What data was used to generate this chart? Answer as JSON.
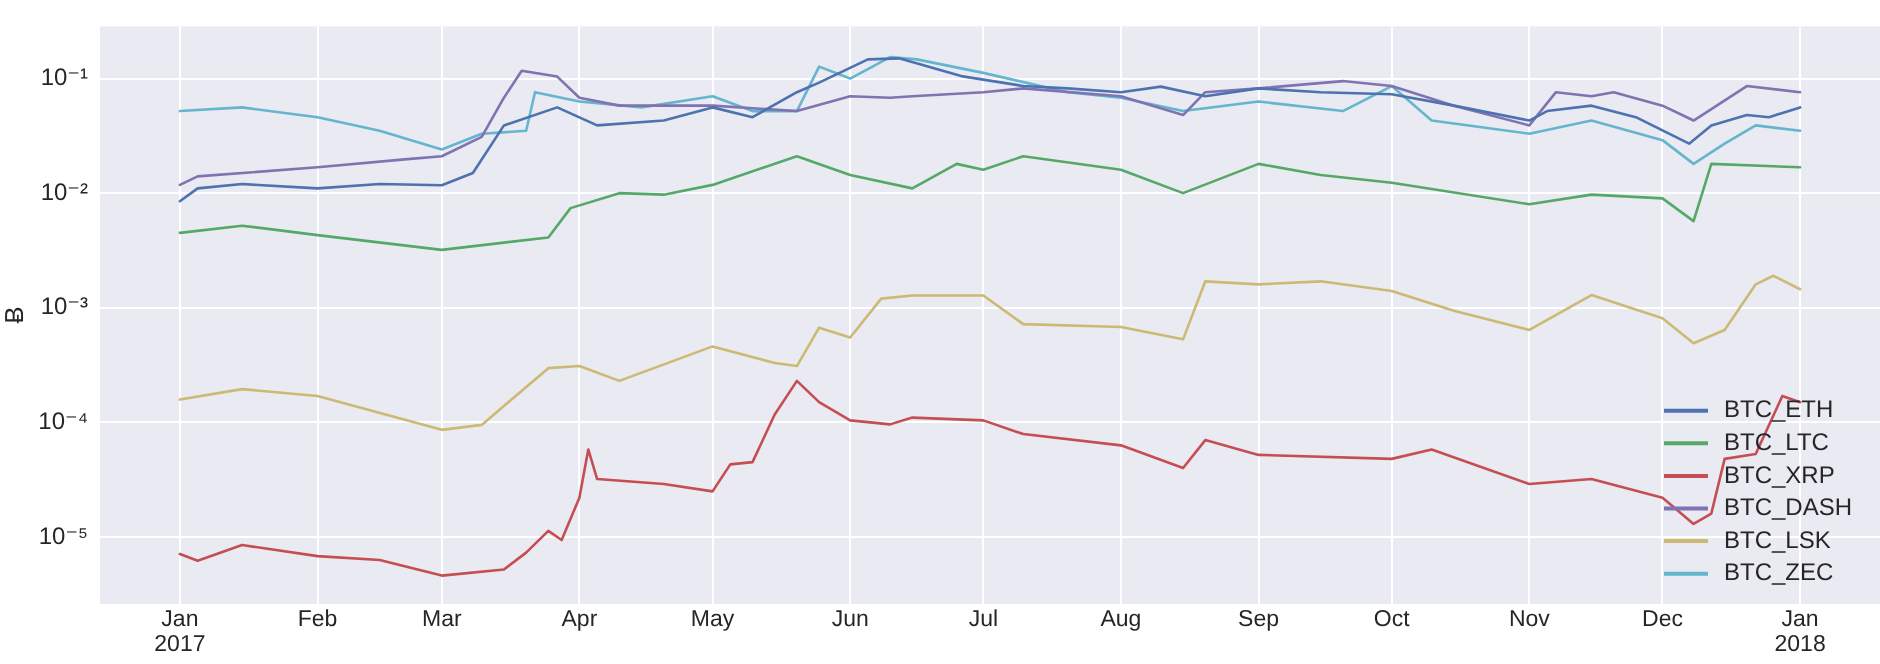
{
  "chart_data": {
    "type": "line",
    "ylabel": "Ƀ",
    "log": "y",
    "grid": true,
    "legend": "bottom right",
    "marker": "none",
    "line_style": "solid",
    "xlim": [
      "2016-12-14",
      "2018-01-19"
    ],
    "xticks": [
      {
        "value": "2017-01-01",
        "label": "Jan\n2017"
      },
      {
        "value": "2017-02-01",
        "label": "Feb"
      },
      {
        "value": "2017-03-01",
        "label": "Mar"
      },
      {
        "value": "2017-04-01",
        "label": "Apr"
      },
      {
        "value": "2017-05-01",
        "label": "May"
      },
      {
        "value": "2017-06-01",
        "label": "Jun"
      },
      {
        "value": "2017-07-01",
        "label": "Jul"
      },
      {
        "value": "2017-08-01",
        "label": "Aug"
      },
      {
        "value": "2017-09-01",
        "label": "Sep"
      },
      {
        "value": "2017-10-01",
        "label": "Oct"
      },
      {
        "value": "2017-11-01",
        "label": "Nov"
      },
      {
        "value": "2017-12-01",
        "label": "Dec"
      },
      {
        "value": "2018-01-01",
        "label": "Jan\n2018"
      }
    ],
    "ylim": [
      2.6e-06,
      0.285
    ],
    "yticks": [
      {
        "value": 1e-05,
        "label": "10⁻⁵"
      },
      {
        "value": 0.0001,
        "label": "10⁻⁴"
      },
      {
        "value": 0.001,
        "label": "10⁻³"
      },
      {
        "value": 0.01,
        "label": "10⁻²"
      },
      {
        "value": 0.1,
        "label": "10⁻¹"
      }
    ],
    "series": [
      {
        "name": "BTC_ETH",
        "color": "#4c72b0",
        "x": [
          "2017-01-01",
          "2017-01-05",
          "2017-01-15",
          "2017-02-01",
          "2017-02-15",
          "2017-03-01",
          "2017-03-08",
          "2017-03-15",
          "2017-03-27",
          "2017-04-05",
          "2017-04-20",
          "2017-05-01",
          "2017-05-10",
          "2017-05-20",
          "2017-05-25",
          "2017-06-05",
          "2017-06-12",
          "2017-06-26",
          "2017-07-10",
          "2017-07-20",
          "2017-08-01",
          "2017-08-10",
          "2017-08-20",
          "2017-09-01",
          "2017-09-15",
          "2017-10-01",
          "2017-10-15",
          "2017-11-01",
          "2017-11-05",
          "2017-11-15",
          "2017-11-25",
          "2017-12-07",
          "2017-12-12",
          "2017-12-20",
          "2017-12-25",
          "2018-01-01"
        ],
        "values": [
          0.0085,
          0.011,
          0.012,
          0.011,
          0.012,
          0.0117,
          0.015,
          0.039,
          0.056,
          0.039,
          0.043,
          0.056,
          0.046,
          0.076,
          0.092,
          0.147,
          0.15,
          0.105,
          0.086,
          0.082,
          0.076,
          0.085,
          0.07,
          0.082,
          0.076,
          0.073,
          0.058,
          0.043,
          0.052,
          0.058,
          0.046,
          0.027,
          0.039,
          0.048,
          0.046,
          0.056
        ]
      },
      {
        "name": "BTC_LTC",
        "color": "#55a868",
        "x": [
          "2017-01-01",
          "2017-01-15",
          "2017-02-01",
          "2017-03-01",
          "2017-03-15",
          "2017-03-25",
          "2017-03-30",
          "2017-04-10",
          "2017-04-20",
          "2017-05-01",
          "2017-05-20",
          "2017-06-01",
          "2017-06-15",
          "2017-06-25",
          "2017-07-01",
          "2017-07-10",
          "2017-08-01",
          "2017-08-15",
          "2017-09-01",
          "2017-09-15",
          "2017-10-01",
          "2017-11-01",
          "2017-11-15",
          "2017-12-01",
          "2017-12-08",
          "2017-12-12",
          "2018-01-01"
        ],
        "values": [
          0.0045,
          0.0052,
          0.0043,
          0.0032,
          0.0037,
          0.0041,
          0.0074,
          0.01,
          0.0097,
          0.0118,
          0.021,
          0.0144,
          0.011,
          0.018,
          0.016,
          0.021,
          0.016,
          0.01,
          0.018,
          0.0144,
          0.0123,
          0.008,
          0.0097,
          0.009,
          0.0057,
          0.018,
          0.0168
        ]
      },
      {
        "name": "BTC_XRP",
        "color": "#c44e52",
        "x": [
          "2017-01-01",
          "2017-01-05",
          "2017-01-15",
          "2017-02-01",
          "2017-02-15",
          "2017-03-01",
          "2017-03-15",
          "2017-03-20",
          "2017-03-25",
          "2017-03-28",
          "2017-04-01",
          "2017-04-03",
          "2017-04-05",
          "2017-04-20",
          "2017-05-01",
          "2017-05-05",
          "2017-05-10",
          "2017-05-15",
          "2017-05-20",
          "2017-05-25",
          "2017-06-01",
          "2017-06-10",
          "2017-06-15",
          "2017-07-01",
          "2017-07-10",
          "2017-08-01",
          "2017-08-15",
          "2017-08-20",
          "2017-09-01",
          "2017-10-01",
          "2017-10-10",
          "2017-11-01",
          "2017-11-15",
          "2017-12-01",
          "2017-12-08",
          "2017-12-12",
          "2017-12-15",
          "2017-12-22",
          "2017-12-28",
          "2018-01-01"
        ],
        "values": [
          7.1e-06,
          6.2e-06,
          8.5e-06,
          6.8e-06,
          6.3e-06,
          4.6e-06,
          5.2e-06,
          7.3e-06,
          1.13e-05,
          9.4e-06,
          2.2e-05,
          5.8e-05,
          3.2e-05,
          2.9e-05,
          2.5e-05,
          4.3e-05,
          4.5e-05,
          0.000117,
          0.00023,
          0.00015,
          0.000104,
          9.6e-05,
          0.00011,
          0.000104,
          7.9e-05,
          6.3e-05,
          4e-05,
          7e-05,
          5.2e-05,
          4.8e-05,
          5.8e-05,
          2.9e-05,
          3.2e-05,
          2.2e-05,
          1.3e-05,
          1.6e-05,
          4.8e-05,
          5.3e-05,
          0.00017,
          0.00015
        ]
      },
      {
        "name": "BTC_DASH",
        "color": "#8172b2",
        "x": [
          "2017-01-01",
          "2017-01-05",
          "2017-02-01",
          "2017-02-20",
          "2017-03-01",
          "2017-03-10",
          "2017-03-15",
          "2017-03-19",
          "2017-03-27",
          "2017-04-01",
          "2017-04-10",
          "2017-05-01",
          "2017-05-20",
          "2017-06-01",
          "2017-06-10",
          "2017-06-15",
          "2017-07-01",
          "2017-07-10",
          "2017-08-01",
          "2017-08-15",
          "2017-08-20",
          "2017-09-01",
          "2017-09-20",
          "2017-10-01",
          "2017-10-15",
          "2017-11-01",
          "2017-11-07",
          "2017-11-15",
          "2017-11-20",
          "2017-12-01",
          "2017-12-08",
          "2017-12-20",
          "2018-01-01"
        ],
        "values": [
          0.0118,
          0.014,
          0.0168,
          0.0196,
          0.021,
          0.031,
          0.068,
          0.117,
          0.104,
          0.068,
          0.058,
          0.058,
          0.052,
          0.07,
          0.068,
          0.07,
          0.076,
          0.082,
          0.07,
          0.048,
          0.076,
          0.082,
          0.095,
          0.086,
          0.058,
          0.039,
          0.076,
          0.07,
          0.076,
          0.058,
          0.043,
          0.086,
          0.076
        ]
      },
      {
        "name": "BTC_LSK",
        "color": "#ccb974",
        "x": [
          "2017-01-01",
          "2017-01-15",
          "2017-02-01",
          "2017-03-01",
          "2017-03-10",
          "2017-03-25",
          "2017-04-01",
          "2017-04-10",
          "2017-05-01",
          "2017-05-15",
          "2017-05-20",
          "2017-05-25",
          "2017-06-01",
          "2017-06-08",
          "2017-06-15",
          "2017-07-01",
          "2017-07-10",
          "2017-08-01",
          "2017-08-15",
          "2017-08-20",
          "2017-09-01",
          "2017-09-15",
          "2017-10-01",
          "2017-10-15",
          "2017-11-01",
          "2017-11-15",
          "2017-12-01",
          "2017-12-08",
          "2017-12-15",
          "2017-12-22",
          "2017-12-26",
          "2018-01-01"
        ],
        "values": [
          0.000158,
          0.000195,
          0.00017,
          8.6e-05,
          9.5e-05,
          0.000297,
          0.00031,
          0.00023,
          0.00046,
          0.00033,
          0.00031,
          0.00067,
          0.00055,
          0.0012,
          0.00128,
          0.00128,
          0.00072,
          0.00068,
          0.00053,
          0.0017,
          0.0016,
          0.0017,
          0.0014,
          0.00094,
          0.00064,
          0.00129,
          0.00081,
          0.00049,
          0.00064,
          0.0016,
          0.0019,
          0.00145
        ]
      },
      {
        "name": "BTC_ZEC",
        "color": "#64b5cd",
        "x": [
          "2017-01-01",
          "2017-01-15",
          "2017-02-01",
          "2017-02-15",
          "2017-03-01",
          "2017-03-10",
          "2017-03-20",
          "2017-03-22",
          "2017-04-01",
          "2017-04-15",
          "2017-05-01",
          "2017-05-10",
          "2017-05-20",
          "2017-05-25",
          "2017-06-01",
          "2017-06-10",
          "2017-06-16",
          "2017-07-01",
          "2017-07-20",
          "2017-08-01",
          "2017-08-15",
          "2017-09-01",
          "2017-09-20",
          "2017-10-01",
          "2017-10-10",
          "2017-11-01",
          "2017-11-15",
          "2017-12-01",
          "2017-12-08",
          "2017-12-15",
          "2017-12-22",
          "2018-01-01"
        ],
        "values": [
          0.052,
          0.056,
          0.046,
          0.035,
          0.024,
          0.033,
          0.035,
          0.076,
          0.063,
          0.056,
          0.07,
          0.052,
          0.052,
          0.127,
          0.1,
          0.154,
          0.147,
          0.112,
          0.076,
          0.068,
          0.052,
          0.063,
          0.052,
          0.086,
          0.043,
          0.033,
          0.043,
          0.029,
          0.018,
          0.027,
          0.039,
          0.035
        ]
      }
    ]
  }
}
